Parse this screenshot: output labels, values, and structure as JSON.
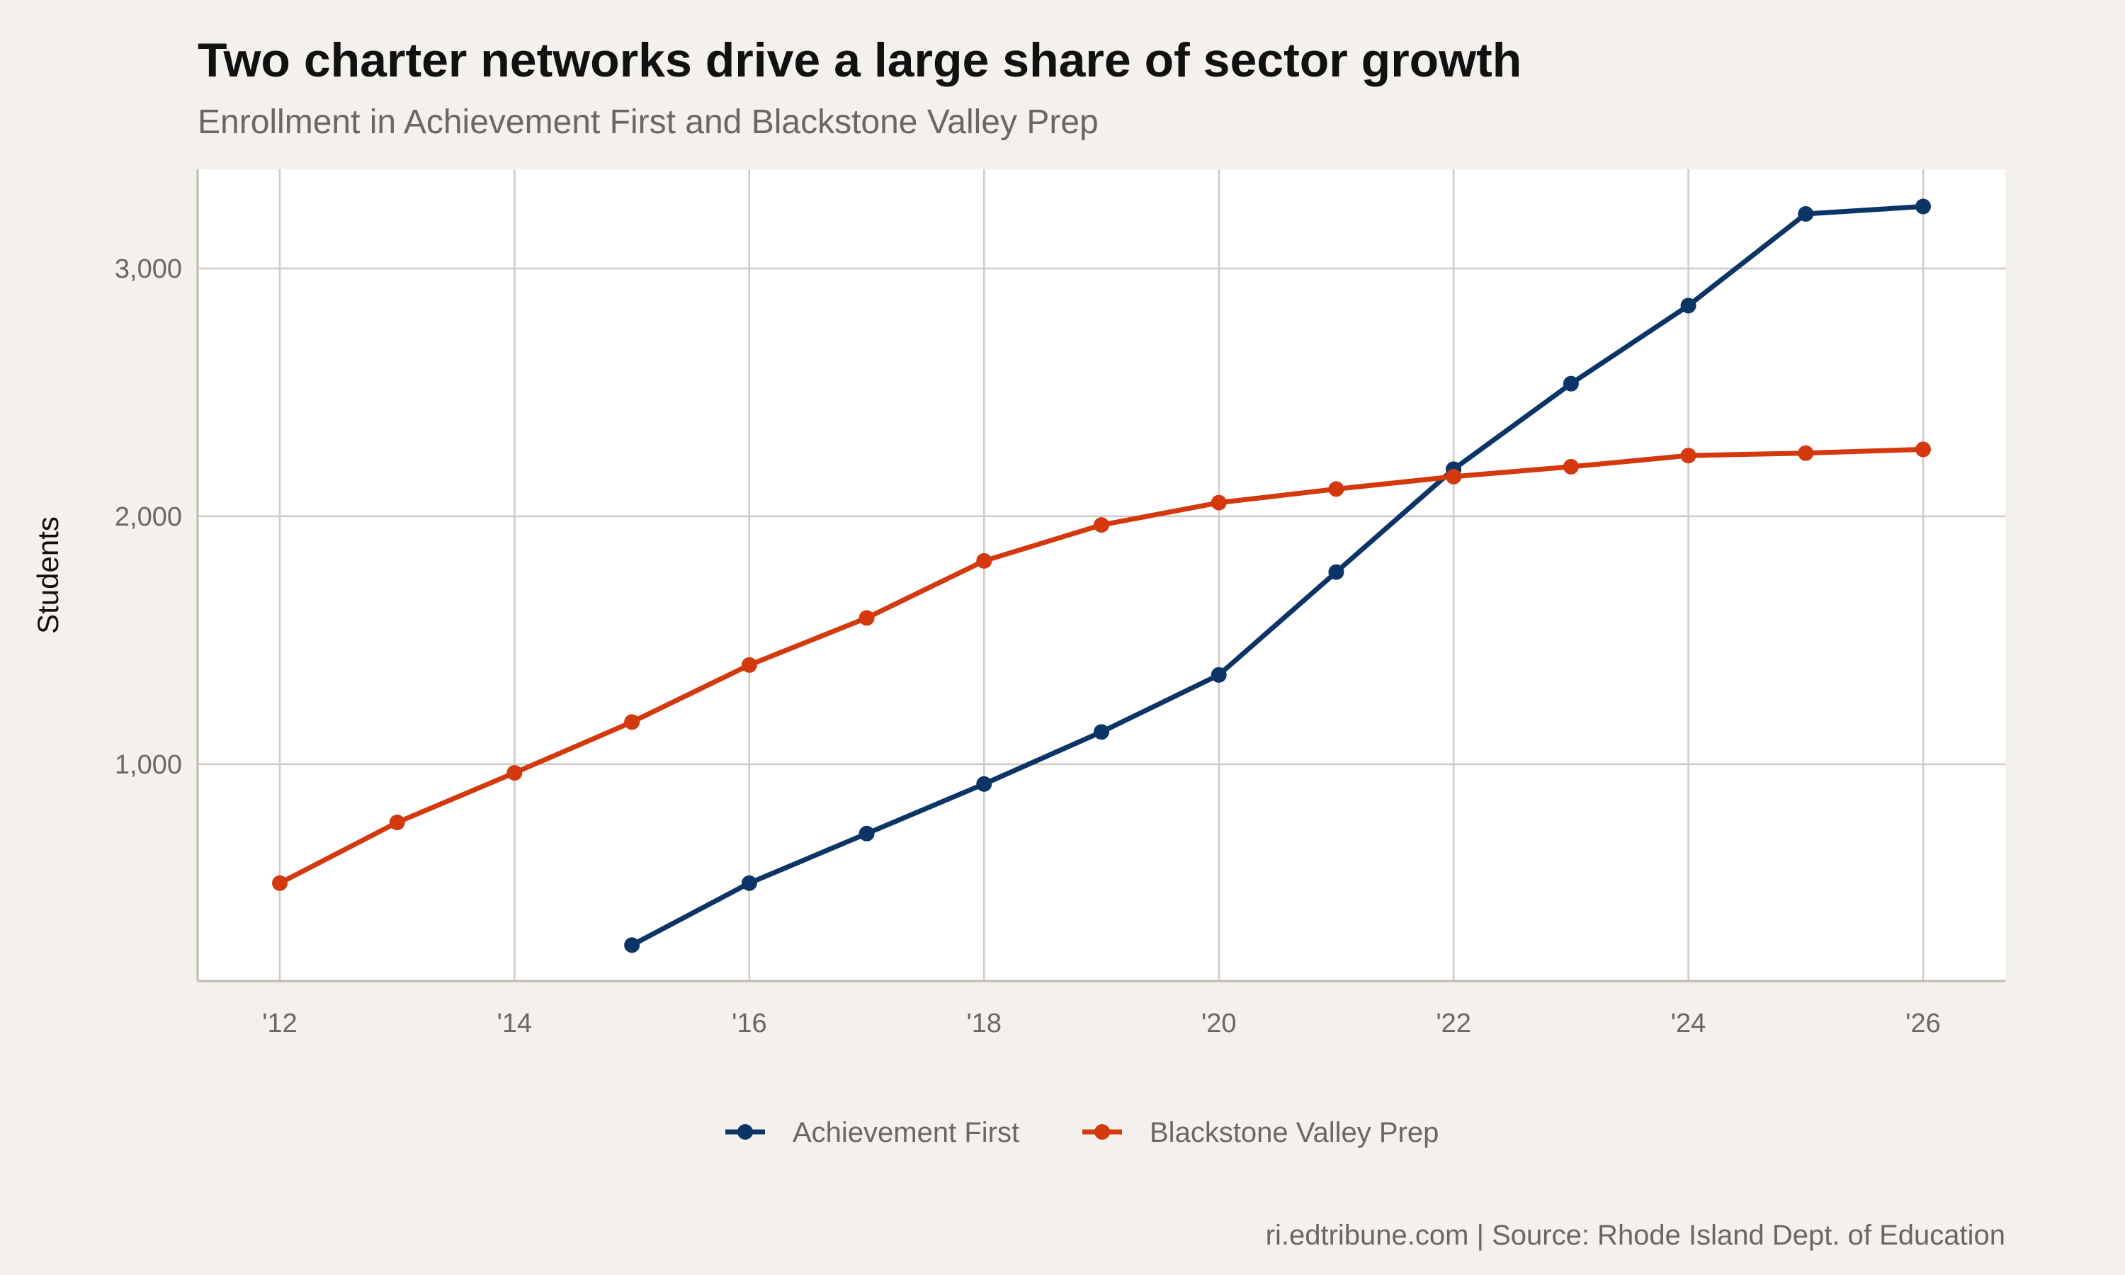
{
  "chart_data": {
    "type": "line",
    "title": "Two charter networks drive a large share of sector growth",
    "subtitle": "Enrollment in Achievement First and Blackstone Valley Prep",
    "xlabel": "",
    "ylabel": "Students",
    "caption": "ri.edtribune.com | Source: Rhode Island Dept. of Education",
    "xlim": [
      2011.3,
      2026.7
    ],
    "ylim": [
      125,
      3400
    ],
    "x_ticks": [
      2012,
      2014,
      2016,
      2018,
      2020,
      2022,
      2024,
      2026
    ],
    "x_tick_labels": [
      "'12",
      "'14",
      "'16",
      "'18",
      "'20",
      "'22",
      "'24",
      "'26"
    ],
    "y_ticks": [
      1000,
      2000,
      3000
    ],
    "y_tick_labels": [
      "1,000",
      "2,000",
      "3,000"
    ],
    "grid": true,
    "legend_position": "bottom",
    "series": [
      {
        "name": "Achievement First",
        "color": "#0b3566",
        "x": [
          2015,
          2016,
          2017,
          2018,
          2019,
          2020,
          2021,
          2022,
          2023,
          2024,
          2025,
          2026
        ],
        "values": [
          270,
          520,
          720,
          920,
          1130,
          1360,
          1775,
          2190,
          2535,
          2850,
          3220,
          3250
        ]
      },
      {
        "name": "Blackstone Valley Prep",
        "color": "#d4380d",
        "x": [
          2012,
          2013,
          2014,
          2015,
          2016,
          2017,
          2018,
          2019,
          2020,
          2021,
          2022,
          2023,
          2024,
          2025,
          2026
        ],
        "values": [
          520,
          765,
          965,
          1170,
          1400,
          1590,
          1820,
          1965,
          2055,
          2110,
          2160,
          2200,
          2245,
          2255,
          2270
        ]
      }
    ]
  }
}
